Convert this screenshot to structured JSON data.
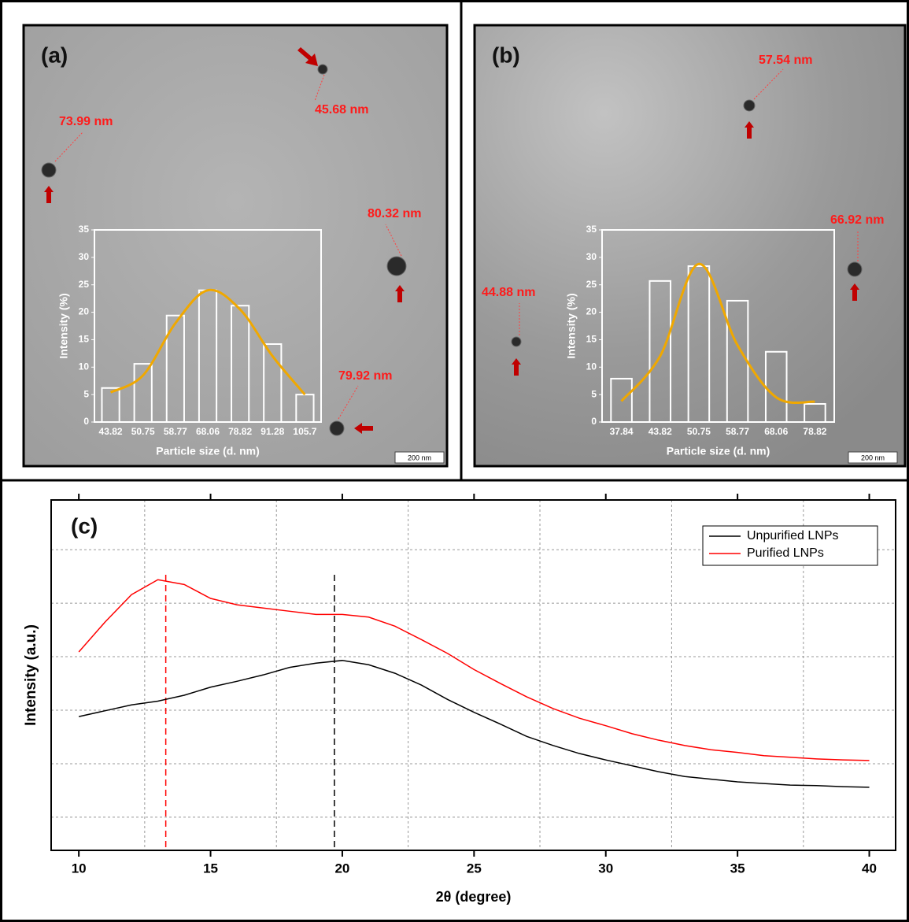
{
  "chart_data": [
    {
      "type": "bar",
      "panel": "(a)",
      "categories": [
        "43.82",
        "50.75",
        "58.77",
        "68.06",
        "78.82",
        "91.28",
        "105.7"
      ],
      "values": [
        6.2,
        10.6,
        19.4,
        24,
        21.2,
        14.2,
        5
      ],
      "color": "#ffffff",
      "fit": {
        "color": "#f0a800",
        "values": [
          5.4,
          8.5,
          18,
          24,
          20.5,
          12,
          5
        ]
      },
      "ylim": [
        0,
        35
      ],
      "yticks": [
        0,
        5,
        10,
        15,
        20,
        25,
        30,
        35
      ],
      "ylabel": "Intensity (%)",
      "xlabel": "Particle size (d. nm)",
      "annotations": [
        "73.99 nm",
        "45.68 nm",
        "80.32 nm",
        "79.92 nm"
      ],
      "scale_bar": "200 nm"
    },
    {
      "type": "bar",
      "panel": "(b)",
      "categories": [
        "37.84",
        "43.82",
        "50.75",
        "58.77",
        "68.06",
        "78.82"
      ],
      "values": [
        7.9,
        25.7,
        28.4,
        22.1,
        12.8,
        3.3
      ],
      "color": "#ffffff",
      "fit": {
        "color": "#f0a800",
        "values": [
          3.8,
          12,
          28.8,
          14,
          4.5,
          3.7
        ]
      },
      "ylim": [
        0,
        35
      ],
      "yticks": [
        0,
        5,
        10,
        15,
        20,
        25,
        30,
        35
      ],
      "ylabel": "Intensity (%)",
      "xlabel": "Particle size (d. nm)",
      "annotations": [
        "57.54 nm",
        "66.92 nm",
        "44.88 nm"
      ],
      "scale_bar": "200 nm"
    },
    {
      "type": "line",
      "panel": "(c)",
      "x": [
        10,
        11,
        12,
        13,
        14,
        15,
        16,
        17,
        18,
        19,
        20,
        21,
        22,
        23,
        24,
        25,
        26,
        27,
        28,
        29,
        30,
        31,
        32,
        33,
        34,
        35,
        36,
        37,
        38,
        39,
        40
      ],
      "series": [
        {
          "name": "Unpurified LNPs",
          "color": "#000000",
          "values": [
            1.88,
            1.99,
            2.1,
            2.17,
            2.28,
            2.43,
            2.54,
            2.66,
            2.8,
            2.88,
            2.93,
            2.85,
            2.69,
            2.47,
            2.2,
            1.96,
            1.74,
            1.51,
            1.34,
            1.19,
            1.07,
            0.96,
            0.85,
            0.76,
            0.71,
            0.66,
            0.63,
            0.6,
            0.59,
            0.57,
            0.56
          ]
        },
        {
          "name": "Purified LNPs",
          "color": "#ff0000",
          "values": [
            3.09,
            3.65,
            4.16,
            4.44,
            4.35,
            4.09,
            3.97,
            3.91,
            3.85,
            3.79,
            3.79,
            3.74,
            3.57,
            3.32,
            3.06,
            2.76,
            2.5,
            2.25,
            2.03,
            1.85,
            1.71,
            1.56,
            1.44,
            1.34,
            1.26,
            1.21,
            1.15,
            1.12,
            1.09,
            1.07,
            1.06
          ]
        }
      ],
      "peaks": [
        {
          "x": 13.3,
          "color": "#ff0000"
        },
        {
          "x": 19.7,
          "color": "#000000"
        }
      ],
      "xlim": [
        8.95,
        41.0
      ],
      "xticks": [
        10,
        15,
        20,
        25,
        30,
        35,
        40
      ],
      "xgrid": [
        12.5,
        17.5,
        22.5,
        27.5,
        32.5,
        37.5
      ],
      "ylim": [
        -0.62,
        5.93
      ],
      "ygrid": [
        0,
        1,
        2,
        3,
        4,
        5
      ],
      "xlabel": "2θ (degree)",
      "ylabel": "Intensity (a.u.)",
      "legend": "upper right"
    }
  ]
}
